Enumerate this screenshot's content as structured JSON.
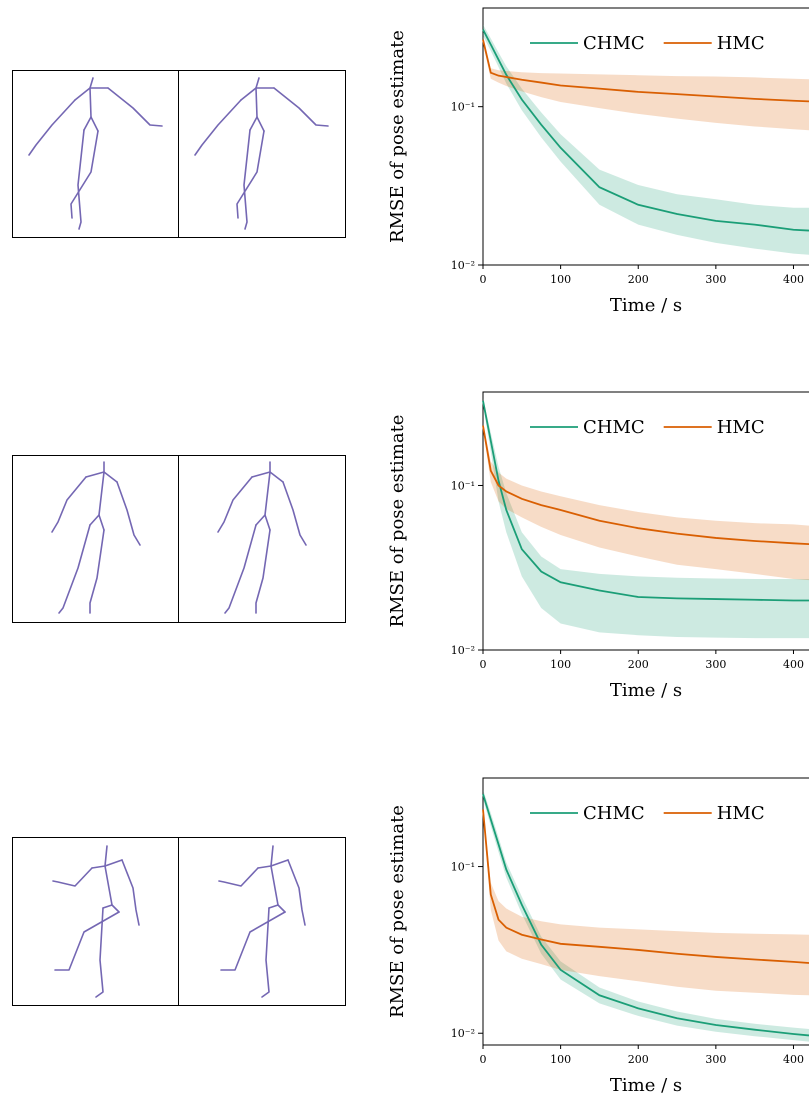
{
  "chart_data": [
    {
      "type": "line",
      "yscale": "log",
      "legend": "top",
      "xlabel": "Time / s",
      "ylabel": "RMSE of pose estimate",
      "x": [
        0,
        10,
        20,
        30,
        50,
        75,
        100,
        150,
        200,
        250,
        300,
        350,
        400,
        420
      ],
      "xlim": [
        0,
        420
      ],
      "xticks": [
        0,
        100,
        200,
        300,
        400
      ],
      "ylim": [
        0.01,
        0.42
      ],
      "yticks": [
        {
          "value": 0.01,
          "label": "10⁻²"
        },
        {
          "value": 0.1,
          "label": "10⁻¹"
        }
      ],
      "series": [
        {
          "name": "CHMC",
          "color": "#1b9e77",
          "values": [
            0.307,
            0.247,
            0.198,
            0.159,
            0.111,
            0.077,
            0.055,
            0.031,
            0.024,
            0.021,
            0.019,
            0.018,
            0.0167,
            0.0165
          ],
          "upper": [
            0.33,
            0.27,
            0.22,
            0.18,
            0.13,
            0.092,
            0.067,
            0.04,
            0.032,
            0.028,
            0.026,
            0.024,
            0.023,
            0.023
          ],
          "lower": [
            0.28,
            0.225,
            0.178,
            0.14,
            0.095,
            0.064,
            0.045,
            0.024,
            0.018,
            0.0155,
            0.0138,
            0.0127,
            0.0118,
            0.0116
          ]
        },
        {
          "name": "HMC",
          "color": "#d95f02",
          "values": [
            0.265,
            0.164,
            0.157,
            0.154,
            0.148,
            0.142,
            0.136,
            0.13,
            0.124,
            0.12,
            0.116,
            0.112,
            0.109,
            0.108
          ],
          "upper": [
            0.28,
            0.175,
            0.17,
            0.168,
            0.165,
            0.163,
            0.162,
            0.16,
            0.158,
            0.156,
            0.155,
            0.153,
            0.15,
            0.149
          ],
          "lower": [
            0.25,
            0.15,
            0.142,
            0.135,
            0.125,
            0.115,
            0.107,
            0.098,
            0.09,
            0.084,
            0.079,
            0.075,
            0.072,
            0.071
          ]
        }
      ]
    },
    {
      "type": "line",
      "yscale": "log",
      "legend": "top",
      "xlabel": "Time / s",
      "ylabel": "RMSE of pose estimate",
      "x": [
        0,
        10,
        20,
        30,
        50,
        75,
        100,
        150,
        200,
        250,
        300,
        350,
        400,
        420
      ],
      "xlim": [
        0,
        420
      ],
      "xticks": [
        0,
        100,
        200,
        300,
        400
      ],
      "ylim": [
        0.01,
        0.37
      ],
      "yticks": [
        {
          "value": 0.01,
          "label": "10⁻²"
        },
        {
          "value": 0.1,
          "label": "10⁻¹"
        }
      ],
      "series": [
        {
          "name": "CHMC",
          "color": "#1b9e77",
          "values": [
            0.327,
            0.187,
            0.107,
            0.071,
            0.041,
            0.03,
            0.0258,
            0.023,
            0.021,
            0.0206,
            0.0204,
            0.0202,
            0.02,
            0.02
          ],
          "upper": [
            0.34,
            0.21,
            0.13,
            0.09,
            0.052,
            0.037,
            0.031,
            0.029,
            0.028,
            0.0275,
            0.0272,
            0.027,
            0.027,
            0.027
          ],
          "lower": [
            0.31,
            0.16,
            0.08,
            0.052,
            0.028,
            0.018,
            0.0145,
            0.0128,
            0.0123,
            0.012,
            0.0119,
            0.0118,
            0.0118,
            0.0118
          ]
        },
        {
          "name": "HMC",
          "color": "#d95f02",
          "values": [
            0.231,
            0.123,
            0.1,
            0.092,
            0.083,
            0.076,
            0.071,
            0.061,
            0.055,
            0.051,
            0.048,
            0.046,
            0.0445,
            0.044
          ],
          "upper": [
            0.24,
            0.14,
            0.12,
            0.11,
            0.1,
            0.092,
            0.086,
            0.076,
            0.069,
            0.064,
            0.061,
            0.059,
            0.058,
            0.057
          ],
          "lower": [
            0.22,
            0.105,
            0.08,
            0.072,
            0.064,
            0.056,
            0.05,
            0.042,
            0.037,
            0.033,
            0.031,
            0.029,
            0.027,
            0.0266
          ]
        }
      ]
    },
    {
      "type": "line",
      "yscale": "log",
      "legend": "top",
      "xlabel": "Time / s",
      "ylabel": "RMSE of pose estimate",
      "x": [
        0,
        10,
        20,
        30,
        50,
        75,
        100,
        150,
        200,
        250,
        300,
        350,
        400,
        420
      ],
      "xlim": [
        0,
        420
      ],
      "xticks": [
        0,
        100,
        200,
        300,
        400
      ],
      "ylim": [
        0.0085,
        0.34
      ],
      "yticks": [
        {
          "value": 0.01,
          "label": "10⁻²"
        },
        {
          "value": 0.1,
          "label": "10⁻¹"
        }
      ],
      "series": [
        {
          "name": "CHMC",
          "color": "#1b9e77",
          "values": [
            0.272,
            0.192,
            0.136,
            0.096,
            0.059,
            0.034,
            0.024,
            0.0169,
            0.0141,
            0.0123,
            0.0112,
            0.0105,
            0.0099,
            0.0097
          ],
          "upper": [
            0.29,
            0.21,
            0.15,
            0.106,
            0.066,
            0.038,
            0.027,
            0.0188,
            0.0155,
            0.0135,
            0.0122,
            0.0114,
            0.0108,
            0.0106
          ],
          "lower": [
            0.255,
            0.175,
            0.122,
            0.086,
            0.052,
            0.03,
            0.021,
            0.0151,
            0.0127,
            0.0111,
            0.0102,
            0.0096,
            0.0091,
            0.0089
          ]
        },
        {
          "name": "HMC",
          "color": "#d95f02",
          "values": [
            0.22,
            0.068,
            0.048,
            0.043,
            0.039,
            0.0365,
            0.0344,
            0.033,
            0.0316,
            0.03,
            0.0287,
            0.0277,
            0.0268,
            0.0264
          ],
          "upper": [
            0.23,
            0.08,
            0.062,
            0.056,
            0.05,
            0.047,
            0.045,
            0.043,
            0.042,
            0.041,
            0.04,
            0.0395,
            0.0392,
            0.039
          ],
          "lower": [
            0.21,
            0.055,
            0.036,
            0.031,
            0.028,
            0.026,
            0.024,
            0.022,
            0.0205,
            0.019,
            0.018,
            0.0175,
            0.017,
            0.0169
          ]
        }
      ]
    }
  ]
}
